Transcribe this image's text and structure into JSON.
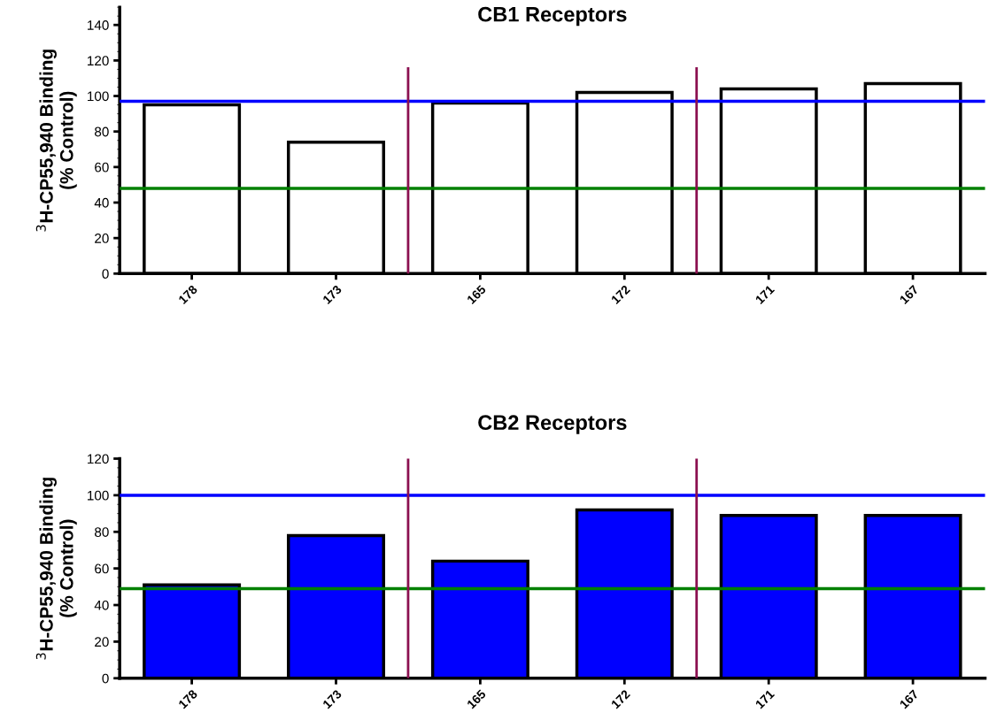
{
  "chart_data": [
    {
      "type": "bar",
      "title": "CB1 Receptors",
      "ylabel": "$^{3}$H-CP55,940 Binding\n(% Control)",
      "categories": [
        "178",
        "173",
        "165",
        "172",
        "171",
        "167"
      ],
      "series": [
        {
          "color": "#ffffff",
          "values": [
            95,
            74,
            96,
            102,
            104,
            107
          ]
        }
      ],
      "ylim": [
        0,
        150
      ],
      "yticks": [
        0,
        20,
        40,
        60,
        80,
        100,
        120,
        140
      ],
      "grid": false,
      "legend": false,
      "ref_lines": [
        {
          "axis": "y",
          "value": 97,
          "color": "#0000ff"
        },
        {
          "axis": "y",
          "value": 48,
          "color": "#008000"
        }
      ]
    },
    {
      "type": "bar",
      "title": "CB2 Receptors",
      "ylabel": "$^{3}$H-CP55,940 Binding\n(% Control)",
      "categories": [
        "178",
        "173",
        "165",
        "172",
        "171",
        "167"
      ],
      "series": [
        {
          "color": "#0000ff",
          "values": [
            51,
            78,
            64,
            92,
            89,
            89
          ]
        }
      ],
      "ylim": [
        0,
        120
      ],
      "yticks": [
        0,
        20,
        40,
        60,
        80,
        100,
        120
      ],
      "grid": false,
      "legend": false,
      "ref_lines": [
        {
          "axis": "y",
          "value": 100,
          "color": "#0000ff"
        },
        {
          "axis": "y",
          "value": 49,
          "color": "#008000"
        }
      ]
    }
  ]
}
